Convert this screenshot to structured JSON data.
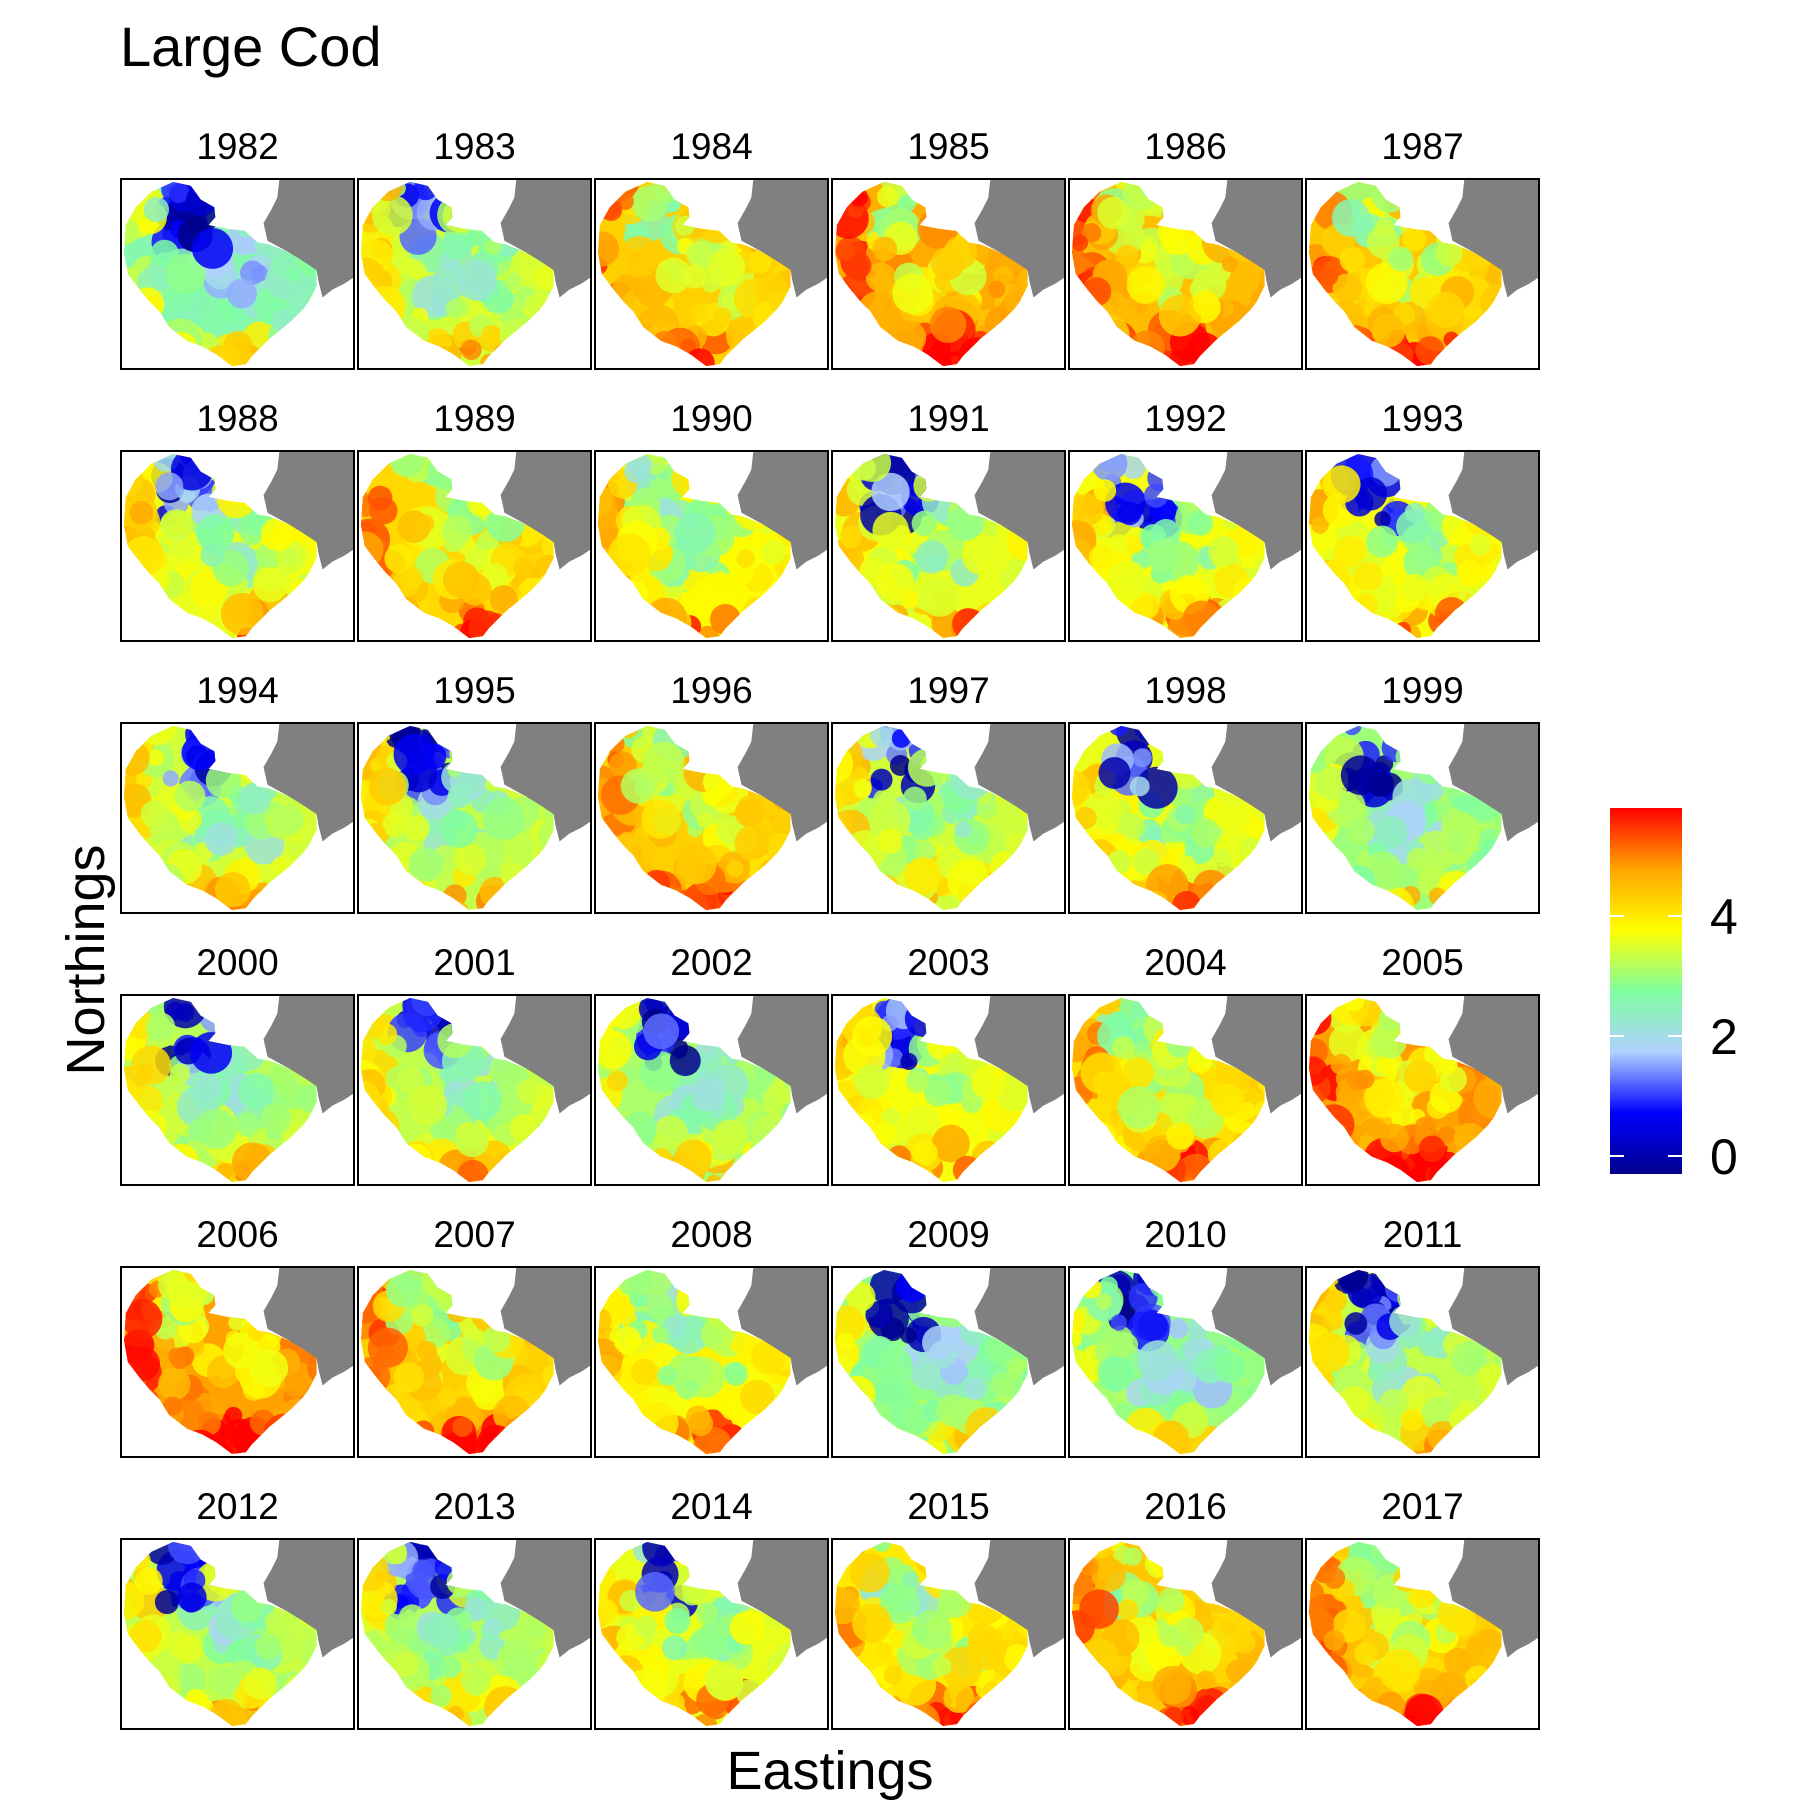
{
  "chart_data": {
    "type": "heatmap",
    "title": "Large Cod",
    "xlabel": "Eastings",
    "ylabel": "Northings",
    "facets": [
      "1982",
      "1983",
      "1984",
      "1985",
      "1986",
      "1987",
      "1988",
      "1989",
      "1990",
      "1991",
      "1992",
      "1993",
      "1994",
      "1995",
      "1996",
      "1997",
      "1998",
      "1999",
      "2000",
      "2001",
      "2002",
      "2003",
      "2004",
      "2005",
      "2006",
      "2007",
      "2008",
      "2009",
      "2010",
      "2011",
      "2012",
      "2013",
      "2014",
      "2015",
      "2016",
      "2017"
    ],
    "facet_level": [
      2.6,
      3.4,
      4.3,
      4.7,
      4.5,
      4.4,
      3.6,
      4.2,
      3.8,
      3.6,
      3.7,
      3.7,
      3.4,
      3.3,
      4.3,
      3.4,
      3.6,
      3.0,
      3.2,
      3.3,
      3.1,
      3.7,
      4.1,
      4.8,
      4.8,
      4.3,
      3.9,
      2.9,
      2.9,
      3.3,
      3.3,
      3.2,
      3.6,
      4.0,
      4.4,
      4.3
    ],
    "colorbar": {
      "ticks": [
        0,
        2,
        4
      ],
      "range": [
        -0.3,
        5.8
      ],
      "colors": [
        "#00008b",
        "#0000ff",
        "#b0d0ff",
        "#7fffa0",
        "#ffff00",
        "#ffa500",
        "#ff0000"
      ]
    }
  },
  "colors": {
    "land": "#808080",
    "panel_border": "#000000"
  }
}
